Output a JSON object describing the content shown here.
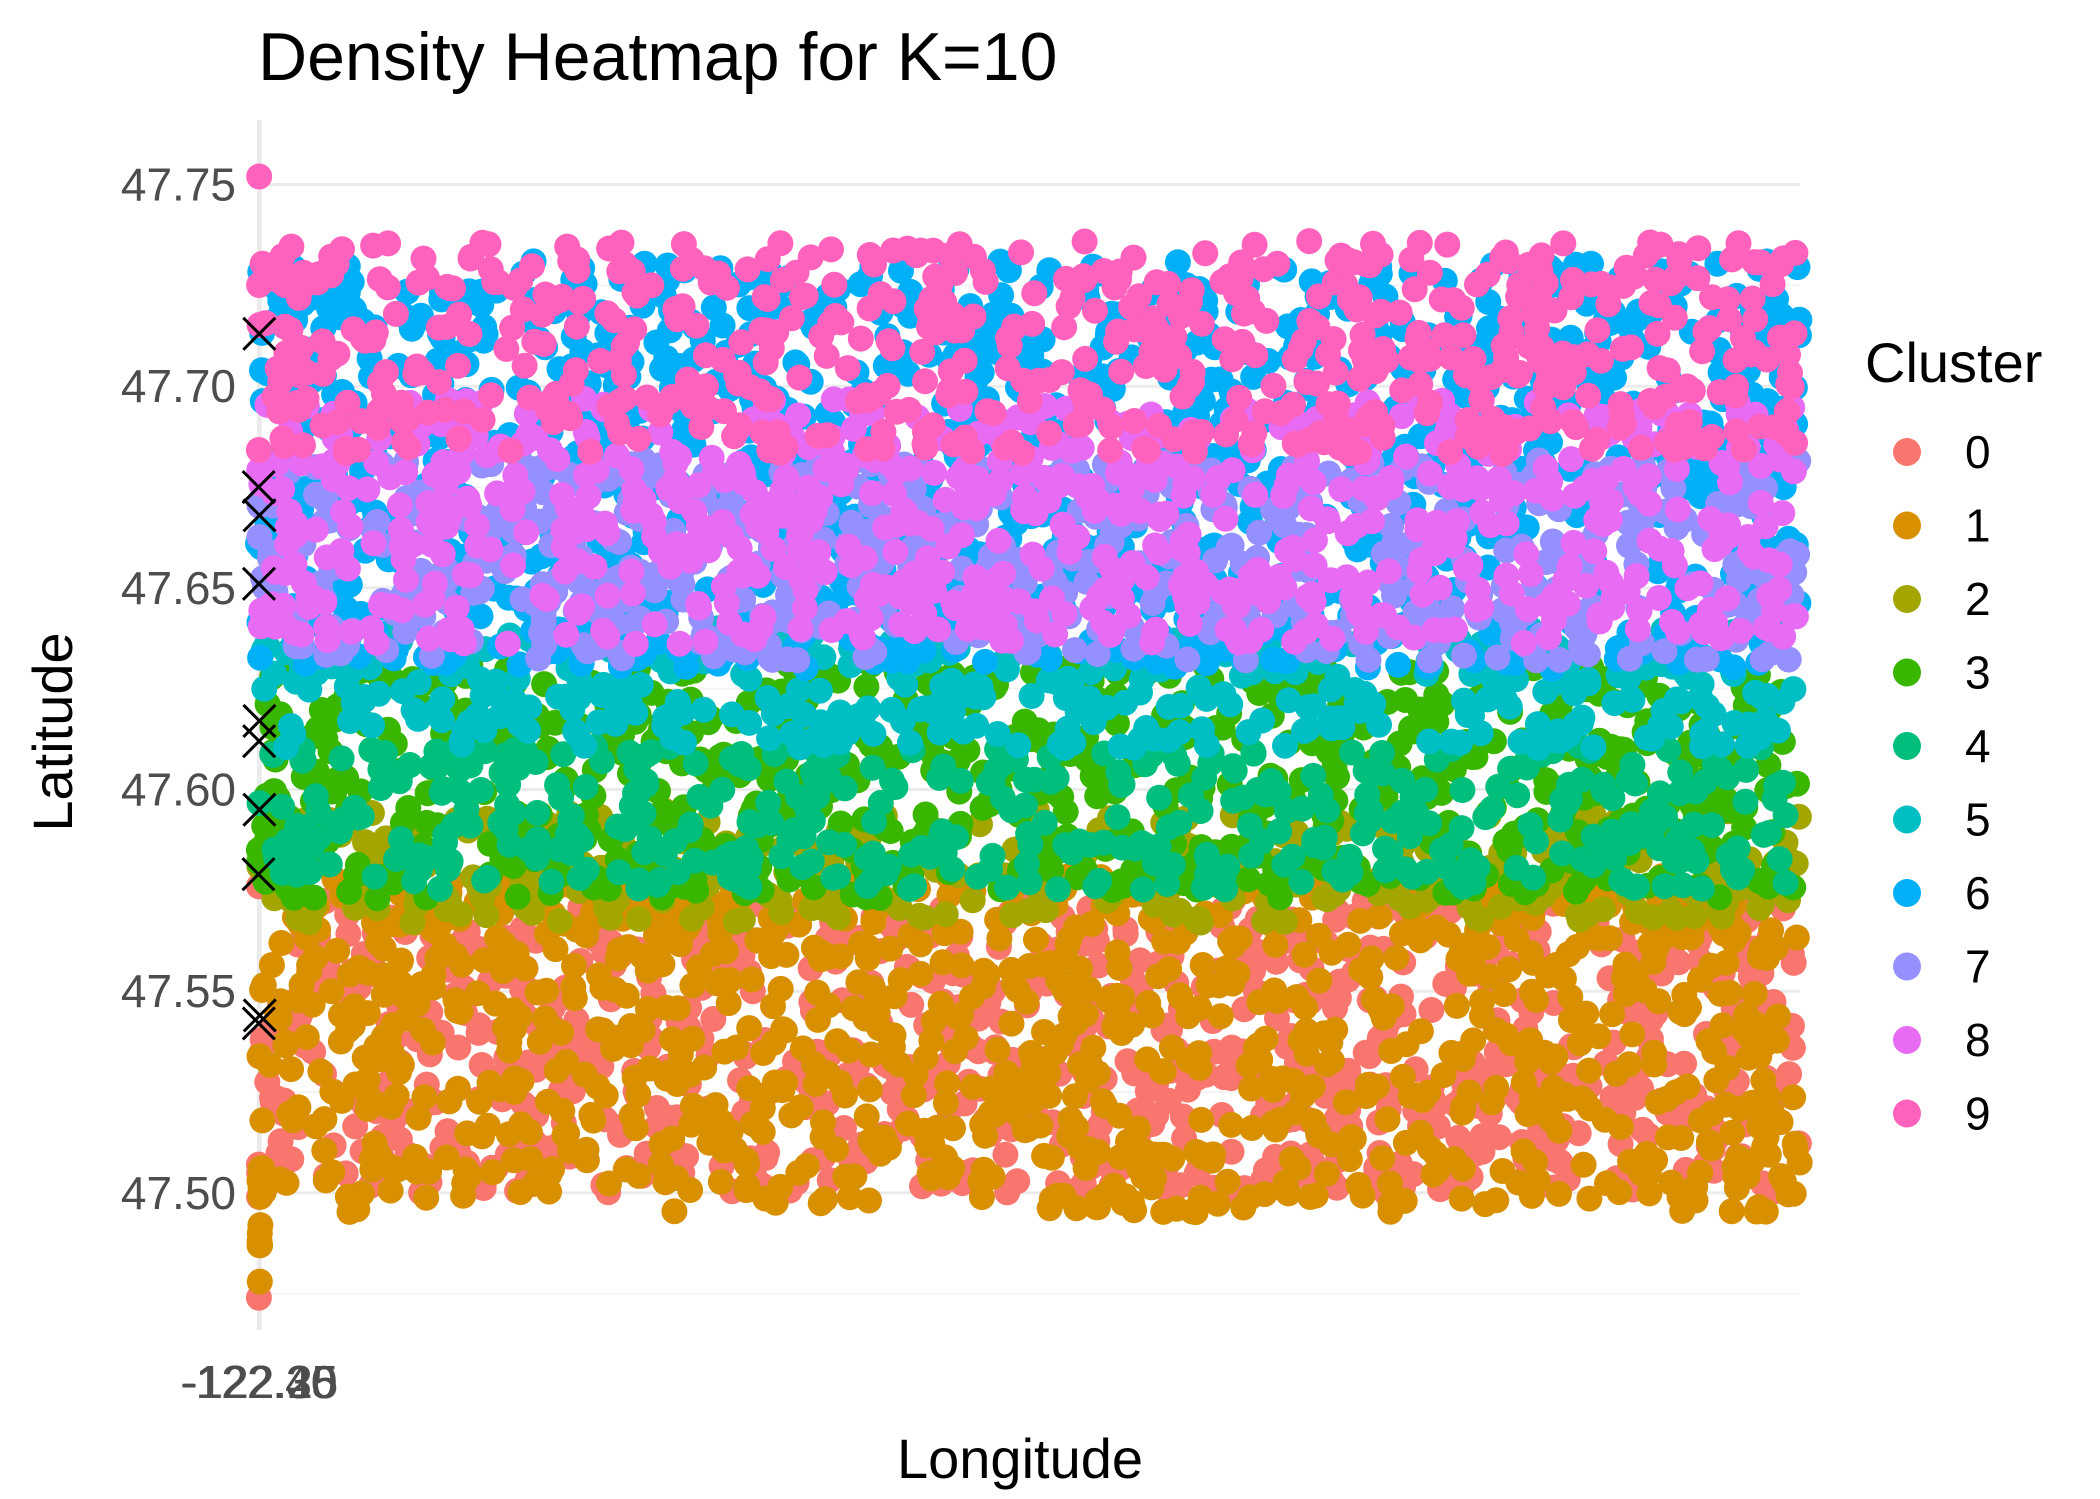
{
  "chart_data": {
    "type": "scatter",
    "title": "Density Heatmap for K=10",
    "xlabel": "Longitude",
    "ylabel": "Latitude",
    "xlim": [
      -122.427,
      -0.0
    ],
    "ylim": [
      47.466,
      47.766
    ],
    "x_ticks": [
      -122.4,
      -122.35,
      -122.3,
      -122.25
    ],
    "x_tick_labels": [
      "-122.40",
      "-122.35",
      "-122.30",
      "-122.25"
    ],
    "y_ticks": [
      47.5,
      47.55,
      47.6,
      47.65,
      47.7,
      47.75
    ],
    "y_tick_labels": [
      "47.50",
      "47.55",
      "47.60",
      "47.65",
      "47.70",
      "47.75"
    ],
    "grid": true,
    "legend": {
      "title": "Cluster",
      "placement": "right",
      "entries": [
        {
          "label": "0",
          "color": "#F8766D"
        },
        {
          "label": "1",
          "color": "#D89000"
        },
        {
          "label": "2",
          "color": "#A3A500"
        },
        {
          "label": "3",
          "color": "#39B600"
        },
        {
          "label": "4",
          "color": "#00BF7D"
        },
        {
          "label": "5",
          "color": "#00BFC4"
        },
        {
          "label": "6",
          "color": "#00B0F6"
        },
        {
          "label": "7",
          "color": "#9590FF"
        },
        {
          "label": "8",
          "color": "#E76BF3"
        },
        {
          "label": "9",
          "color": "#FF62BC"
        }
      ]
    },
    "clusters": [
      {
        "name": "0",
        "color": "#F8766D",
        "x_range": [
          -122.405,
          -0.0
        ],
        "y_range": [
          47.5,
          47.573
        ],
        "outliers": [
          [
            -122.354,
            47.507
          ],
          [
            -122.349,
            47.499
          ],
          [
            -122.339,
            47.505
          ],
          [
            -122.353,
            47.474
          ],
          [
            -122.356,
            47.576
          ]
        ]
      },
      {
        "name": "1",
        "color": "#D89000",
        "x_range": [
          -122.332,
          -0.0
        ],
        "y_range": [
          47.495,
          47.579
        ],
        "outliers": [
          [
            -122.222,
            47.501
          ],
          [
            -122.231,
            47.506
          ],
          [
            -122.236,
            47.499
          ],
          [
            -122.239,
            47.492
          ],
          [
            -122.259,
            47.487
          ],
          [
            -122.287,
            47.49
          ],
          [
            -122.286,
            47.478
          ],
          [
            -122.296,
            47.488
          ],
          [
            -122.308,
            47.487
          ],
          [
            -122.304,
            47.503
          ]
        ]
      },
      {
        "name": "2",
        "color": "#A3A500",
        "x_range": [
          -122.423,
          -0.0
        ],
        "y_range": [
          47.567,
          47.595
        ],
        "outliers": []
      },
      {
        "name": "3",
        "color": "#39B600",
        "x_range": [
          -122.374,
          -0.0
        ],
        "y_range": [
          47.573,
          47.631
        ],
        "outliers": [
          [
            -122.353,
            47.585
          ],
          [
            -122.35,
            47.582
          ]
        ]
      },
      {
        "name": "4",
        "color": "#00BF7D",
        "x_range": [
          -122.333,
          -0.0
        ],
        "y_range": [
          47.575,
          47.611
        ],
        "outliers": []
      },
      {
        "name": "5",
        "color": "#00BFC4",
        "x_range": [
          -122.331,
          -0.0
        ],
        "y_range": [
          47.61,
          47.64
        ],
        "outliers": []
      },
      {
        "name": "6",
        "color": "#00B0F6",
        "x_range": [
          -122.424,
          -0.0
        ],
        "y_range": [
          47.63,
          47.731
        ],
        "outliers": [
          [
            -122.426,
            47.661
          ]
        ]
      },
      {
        "name": "7",
        "color": "#9590FF",
        "x_range": [
          -122.387,
          -0.0
        ],
        "y_range": [
          47.632,
          47.682
        ],
        "outliers": []
      },
      {
        "name": "8",
        "color": "#E76BF3",
        "x_range": [
          -122.336,
          -0.0
        ],
        "y_range": [
          47.636,
          47.697
        ],
        "outliers": []
      },
      {
        "name": "9",
        "color": "#FF62BC",
        "x_range": [
          -122.369,
          -0.0
        ],
        "y_range": [
          47.683,
          47.736
        ],
        "outliers": [
          [
            -122.33,
            47.752
          ]
        ]
      }
    ],
    "centroids": [
      {
        "cluster": "0",
        "x": -122.363,
        "y": 47.542
      },
      {
        "cluster": "1",
        "x": -122.285,
        "y": 47.544
      },
      {
        "cluster": "2",
        "x": -122.391,
        "y": 47.579
      },
      {
        "cluster": "3",
        "x": -122.34,
        "y": 47.612
      },
      {
        "cluster": "4",
        "x": -122.315,
        "y": 47.595
      },
      {
        "cluster": "5",
        "x": -122.315,
        "y": 47.617
      },
      {
        "cluster": "6",
        "x": -122.377,
        "y": 47.675
      },
      {
        "cluster": "7",
        "x": -122.35,
        "y": 47.651
      },
      {
        "cluster": "8",
        "x": -122.307,
        "y": 47.668
      },
      {
        "cluster": "9",
        "x": -122.326,
        "y": 47.713
      }
    ],
    "centroid_marker": "x"
  }
}
